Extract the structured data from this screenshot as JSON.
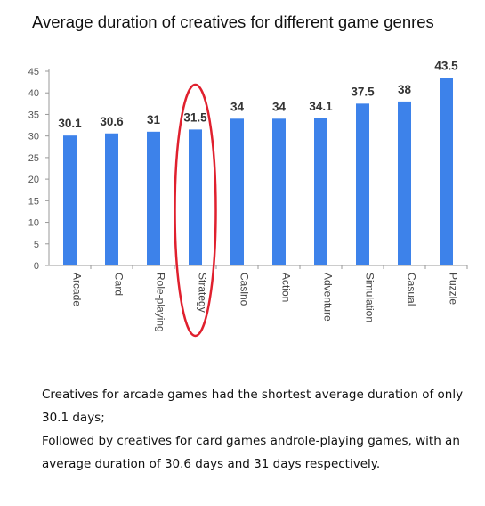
{
  "chart_data": {
    "type": "bar",
    "title": "Average duration of creatives for different game genres",
    "categories": [
      "Arcade",
      "Card",
      "Role-playing",
      "Strategy",
      "Casino",
      "Action",
      "Adventure",
      "Simulation",
      "Casual",
      "Puzzle"
    ],
    "values": [
      30.1,
      30.6,
      31,
      31.5,
      34,
      34,
      34.1,
      37.5,
      38,
      43.5
    ],
    "data_labels": [
      "30.1",
      "30.6",
      "31",
      "31.5",
      "34",
      "34",
      "34.1",
      "37.5",
      "38",
      "43.5"
    ],
    "yticks": [
      0,
      5,
      10,
      15,
      20,
      25,
      30,
      35,
      40,
      45
    ],
    "ylim": [
      0,
      45
    ],
    "xlabel": "",
    "ylabel": "",
    "grid": false,
    "highlight_category": "Strategy",
    "colors": {
      "bar": "#3d82ea",
      "highlight_ring": "#e0202e"
    }
  },
  "caption": {
    "line1": "Creatives for arcade games had the shortest average duration of only 30.1 days;",
    "line2": "Followed by creatives for card games androle-playing games, with an average duration of 30.6 days and 31 days respectively."
  }
}
